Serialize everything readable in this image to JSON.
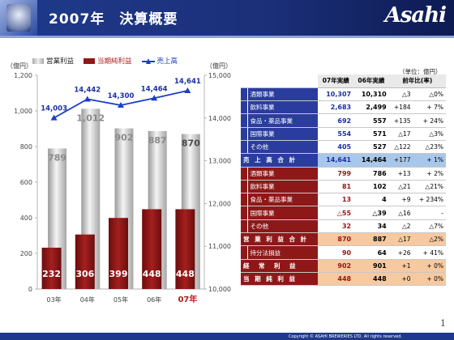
{
  "header": {
    "title": "2007年　決算概要",
    "logo": "Asahi"
  },
  "units": {
    "left": "（億円）",
    "right": "（億円）",
    "table": "（単位：億円）"
  },
  "legend": {
    "gray": "営業利益",
    "red": "当期純利益",
    "line": "売上高"
  },
  "chart_data": {
    "type": "bar",
    "categories": [
      "03年",
      "04年",
      "05年",
      "06年",
      "07年"
    ],
    "series": [
      {
        "name": "営業利益",
        "values": [
          789,
          1012,
          902,
          887,
          870
        ],
        "axis": "left"
      },
      {
        "name": "当期純利益",
        "values": [
          232,
          306,
          399,
          448,
          448
        ],
        "axis": "left"
      },
      {
        "name": "売上高",
        "values": [
          14003,
          14442,
          14300,
          14464,
          14641
        ],
        "axis": "right",
        "type": "line"
      }
    ],
    "ylim_left": [
      0,
      1200
    ],
    "ylim_right": [
      10000,
      15000
    ],
    "yticks_left": [
      "0",
      "200",
      "400",
      "600",
      "800",
      "1,000",
      "1,200"
    ],
    "yticks_right": [
      "10,000",
      "11,000",
      "12,000",
      "13,000",
      "14,000",
      "15,000"
    ],
    "line_labels": [
      "14,003",
      "14,442",
      "14,300",
      "14,464",
      "14,641"
    ],
    "gray_labels": [
      "789",
      "1,012",
      "902",
      "887",
      "870"
    ],
    "red_labels": [
      "232",
      "306",
      "399",
      "448",
      "448"
    ]
  },
  "table": {
    "headers": [
      "07年実績",
      "06年実績",
      "前年比(率)"
    ],
    "rows": [
      {
        "label": "酒類事業",
        "v07": "10,307",
        "v06": "10,310",
        "diff": "△3",
        "rate": "△0%"
      },
      {
        "label": "飲料事業",
        "v07": "2,683",
        "v06": "2,499",
        "diff": "+184",
        "rate": "+ 7%"
      },
      {
        "label": "食品・薬品事業",
        "v07": "692",
        "v06": "557",
        "diff": "+135",
        "rate": "+ 24%"
      },
      {
        "label": "国際事業",
        "v07": "554",
        "v06": "571",
        "diff": "△17",
        "rate": "△3%"
      },
      {
        "label": "その他",
        "v07": "405",
        "v06": "527",
        "diff": "△122",
        "rate": "△23%"
      },
      {
        "label": "売 上 高 合 計",
        "v07": "14,641",
        "v06": "14,464",
        "diff": "+177",
        "rate": "+ 1%"
      },
      {
        "label": "酒類事業",
        "v07": "799",
        "v06": "786",
        "diff": "+13",
        "rate": "+ 2%"
      },
      {
        "label": "飲料事業",
        "v07": "81",
        "v06": "102",
        "diff": "△21",
        "rate": "△21%"
      },
      {
        "label": "食品・薬品事業",
        "v07": "13",
        "v06": "4",
        "diff": "+9",
        "rate": "+ 234%"
      },
      {
        "label": "国際事業",
        "v07": "△55",
        "v06": "△39",
        "diff": "△16",
        "rate": "-"
      },
      {
        "label": "その他",
        "v07": "32",
        "v06": "34",
        "diff": "△2",
        "rate": "△7%"
      },
      {
        "label": "営 業 利 益 合 計",
        "v07": "870",
        "v06": "887",
        "diff": "△17",
        "rate": "△2%"
      },
      {
        "label": "持分法損益",
        "v07": "90",
        "v06": "64",
        "diff": "+26",
        "rate": "+ 41%"
      },
      {
        "label": "経　常　利　益",
        "v07": "902",
        "v06": "901",
        "diff": "+1",
        "rate": "+ 0%"
      },
      {
        "label": "当 期 純 利 益",
        "v07": "448",
        "v06": "448",
        "diff": "+0",
        "rate": "+ 0%"
      }
    ]
  },
  "footer": {
    "copyright": "Copyright © ASAHI BREWERIES LTD. All rights reserved.",
    "page": "1"
  }
}
